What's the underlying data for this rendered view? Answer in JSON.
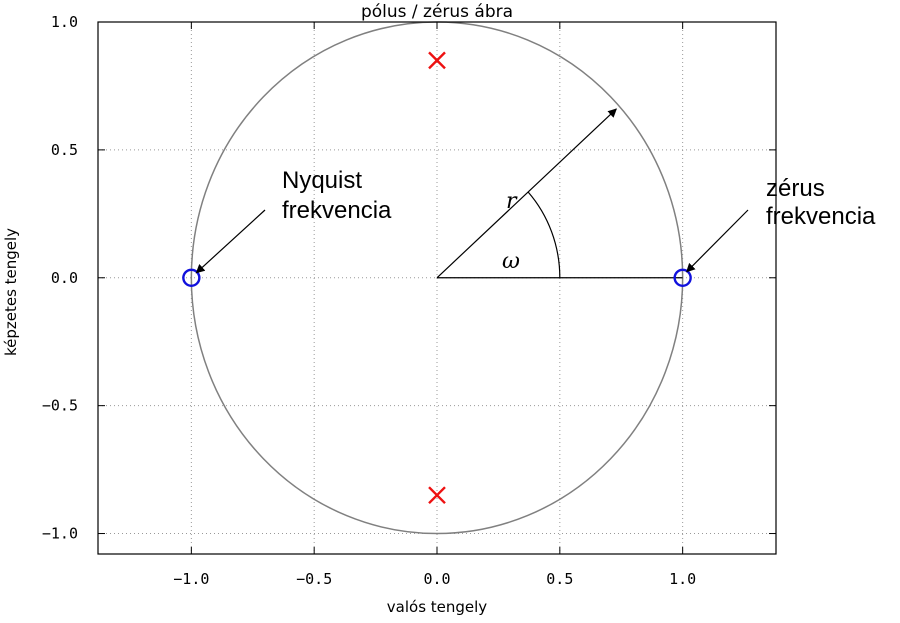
{
  "chart_data": {
    "type": "scatter",
    "title": "pólus / zérus ábra",
    "xlabel": "valós tengely",
    "ylabel": "képzetes tengely",
    "xlim": [
      -1.38,
      1.38
    ],
    "ylim": [
      -1.08,
      1.0
    ],
    "xticks": [
      -1.0,
      -0.5,
      0.0,
      0.5,
      1.0
    ],
    "xtick_labels": [
      "−1.0",
      "−0.5",
      "0.0",
      "0.5",
      "1.0"
    ],
    "yticks": [
      -1.0,
      -0.5,
      0.0,
      0.5,
      1.0
    ],
    "ytick_labels": [
      "−1.0",
      "−0.5",
      "0.0",
      "0.5",
      "1.0"
    ],
    "grid": true,
    "unit_circle": {
      "radius": 1.0,
      "color": "#808080"
    },
    "series": [
      {
        "marker": "x",
        "color": "#ee1111",
        "points": [
          {
            "x": 0.0,
            "y": 0.85
          },
          {
            "x": 0.0,
            "y": -0.85
          }
        ]
      },
      {
        "marker": "circle",
        "color": "#1111dd",
        "points": [
          {
            "x": -1.0,
            "y": 0.0
          },
          {
            "x": 1.0,
            "y": 0.0
          }
        ]
      }
    ],
    "annotations": [
      {
        "lines": [
          "Nyquist",
          "frekvencia"
        ],
        "arrow_to": {
          "x": -1.0,
          "y": 0.0
        }
      },
      {
        "lines": [
          "zérus",
          "frekvencia"
        ],
        "arrow_to": {
          "x": 1.0,
          "y": 0.0
        }
      },
      {
        "text": "r",
        "italic": true
      },
      {
        "text": "ω",
        "italic": true
      }
    ],
    "vector": {
      "from": {
        "x": 0.0,
        "y": 0.0
      },
      "to": {
        "x": 0.73,
        "y": 0.66
      }
    },
    "baseline": {
      "from": {
        "x": 0.0,
        "y": 0.0
      },
      "to": {
        "x": 1.0,
        "y": 0.0
      }
    },
    "angle_arc": {
      "radius": 0.5
    }
  }
}
